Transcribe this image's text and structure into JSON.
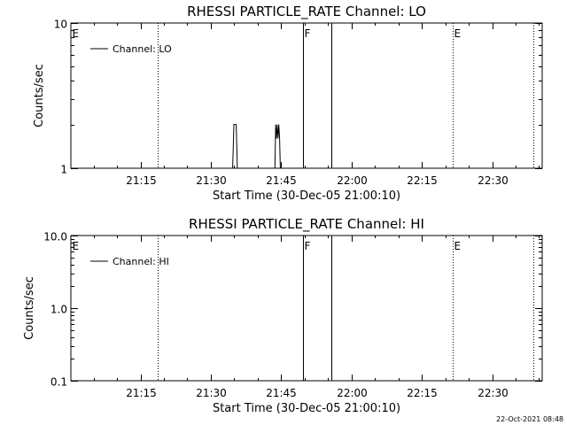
{
  "chart_data": [
    {
      "type": "line",
      "title": "RHESSI PARTICLE_RATE Channel: LO",
      "xlabel": "Start Time (30-Dec-05 21:00:10)",
      "ylabel": "Counts/sec",
      "yscale": "log",
      "ylim": [
        1,
        10
      ],
      "y_ticks": [
        "1",
        "10"
      ],
      "xlim": [
        "21:00:10",
        "22:40:40"
      ],
      "x_ticks": [
        "21:15",
        "21:30",
        "21:45",
        "22:00",
        "22:15",
        "22:30"
      ],
      "legend": {
        "position": "top-left",
        "entries": [
          "Channel: LO"
        ]
      },
      "series": [
        {
          "name": "Channel: LO",
          "x": [
            "21:34:40",
            "21:34:55",
            "21:35:00",
            "21:35:20",
            "21:35:25",
            "21:35:40",
            "21:43:40",
            "21:43:50",
            "21:44:00",
            "21:44:10",
            "21:44:20",
            "21:44:30",
            "21:44:40",
            "21:44:50"
          ],
          "y": [
            1,
            2,
            2,
            2,
            2,
            1,
            1,
            2,
            1.6,
            2,
            1.6,
            2,
            1.6,
            1
          ]
        }
      ],
      "annotations": [
        {
          "label": "E",
          "time": "21:00:10",
          "line": "none"
        },
        {
          "time": "21:18:40",
          "line": "dotted"
        },
        {
          "label": "F",
          "time": "21:49:40",
          "line": "solid"
        },
        {
          "time": "21:55:40",
          "line": "solid"
        },
        {
          "label": "E",
          "time": "22:21:30",
          "line": "dotted"
        },
        {
          "time": "22:38:50",
          "line": "dotted"
        }
      ]
    },
    {
      "type": "line",
      "title": "RHESSI PARTICLE_RATE Channel: HI",
      "xlabel": "Start Time (30-Dec-05 21:00:10)",
      "ylabel": "Counts/sec",
      "yscale": "log",
      "ylim": [
        0.1,
        10
      ],
      "y_ticks": [
        "0.1",
        "1.0",
        "10.0"
      ],
      "xlim": [
        "21:00:10",
        "22:40:40"
      ],
      "x_ticks": [
        "21:15",
        "21:30",
        "21:45",
        "22:00",
        "22:15",
        "22:30"
      ],
      "legend": {
        "position": "top-left",
        "entries": [
          "Channel: HI"
        ]
      },
      "series": [
        {
          "name": "Channel: HI",
          "x": [],
          "y": []
        }
      ],
      "annotations": [
        {
          "label": "E",
          "time": "21:00:10",
          "line": "none"
        },
        {
          "time": "21:18:40",
          "line": "dotted"
        },
        {
          "label": "F",
          "time": "21:49:40",
          "line": "solid"
        },
        {
          "time": "21:55:40",
          "line": "solid"
        },
        {
          "label": "E",
          "time": "22:21:30",
          "line": "dotted"
        },
        {
          "time": "22:38:50",
          "line": "dotted"
        }
      ]
    }
  ],
  "timestamp": "22-Oct-2021 08:48"
}
